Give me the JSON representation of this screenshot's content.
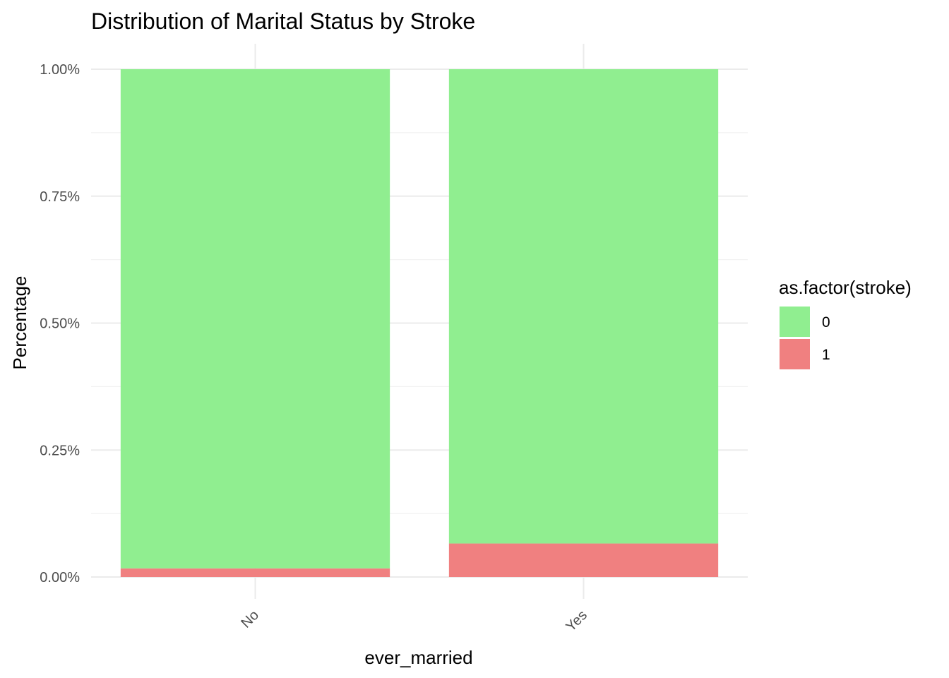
{
  "chart_data": {
    "type": "bar",
    "stacked": true,
    "title": "Distribution of Marital Status by Stroke",
    "xlabel": "ever_married",
    "ylabel": "Percentage",
    "categories": [
      "No",
      "Yes"
    ],
    "ylim": [
      0,
      1
    ],
    "yticks": [
      {
        "value": 0,
        "label": "0.00%"
      },
      {
        "value": 0.25,
        "label": "0.25%"
      },
      {
        "value": 0.5,
        "label": "0.50%"
      },
      {
        "value": 0.75,
        "label": "0.75%"
      },
      {
        "value": 1,
        "label": "1.00%"
      }
    ],
    "series": [
      {
        "name": "1",
        "color": "#f08080",
        "values": [
          0.017,
          0.066
        ]
      },
      {
        "name": "0",
        "color": "#90ee90",
        "values": [
          0.983,
          0.934
        ]
      }
    ],
    "legend": {
      "title": "as.factor(stroke)",
      "position": "right",
      "entries": [
        {
          "label": "0",
          "color": "#90ee90"
        },
        {
          "label": "1",
          "color": "#f08080"
        }
      ]
    },
    "grid": true
  }
}
